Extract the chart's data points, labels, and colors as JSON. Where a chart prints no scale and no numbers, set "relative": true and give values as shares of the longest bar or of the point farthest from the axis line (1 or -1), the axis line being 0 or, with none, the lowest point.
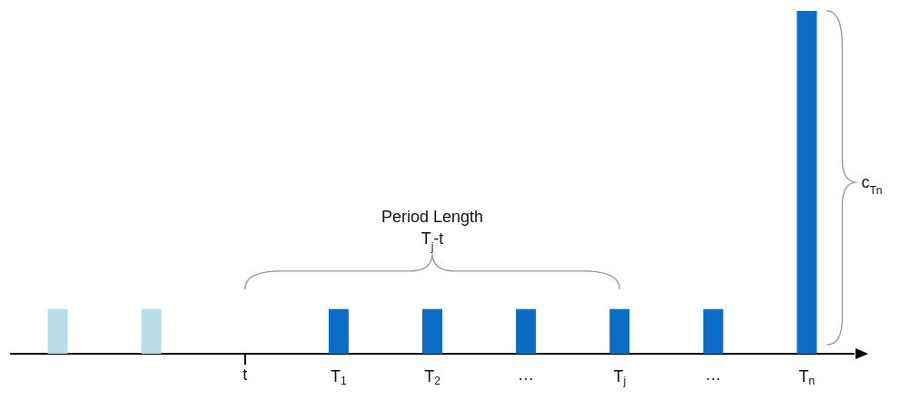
{
  "chart_data": {
    "type": "bar",
    "relative": true,
    "categories": [
      null,
      null,
      "t",
      "T$_{1}$",
      "T$_{2}$",
      "…",
      "T$_{j}$",
      "…",
      "T$_{n}$"
    ],
    "values": [
      0.13,
      0.13,
      null,
      0.13,
      0.13,
      0.13,
      0.13,
      0.13,
      1
    ],
    "colors": [
      "#b7dde8",
      "#b7dde8",
      "#0a6cc4",
      "#0a6cc4",
      "#0a6cc4",
      "#0a6cc4",
      "#0a6cc4",
      "#0a6cc4",
      "#0a6cc4"
    ],
    "annotations": [
      "Period Length",
      "T$_{j}$-t",
      "c$_{Tn}$"
    ],
    "grid": false
  }
}
